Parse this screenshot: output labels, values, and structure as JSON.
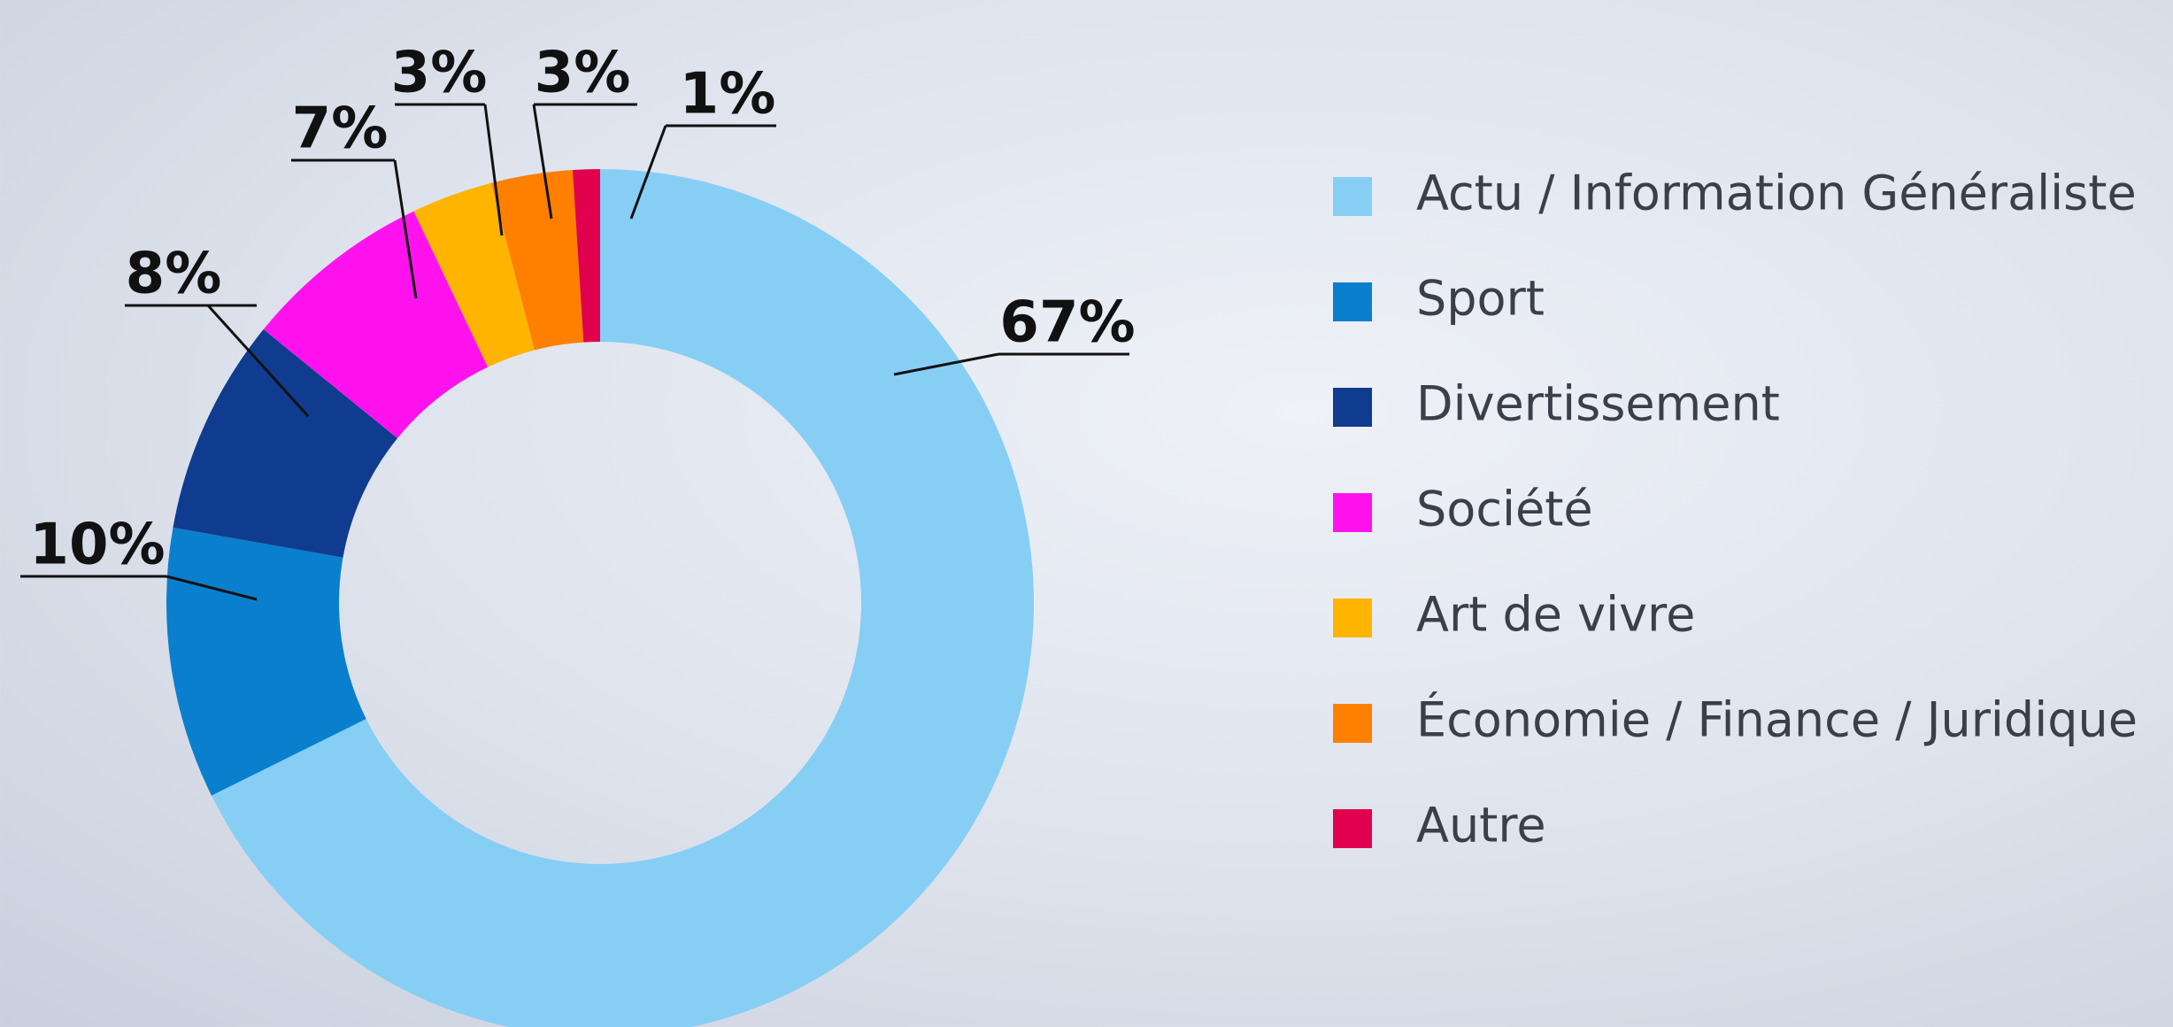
{
  "chart_data": {
    "type": "donut",
    "categories": [
      "Actu / Information Généraliste",
      "Sport",
      "Divertissement",
      "Société",
      "Art de vivre",
      "Économie / Finance / Juridique",
      "Autre"
    ],
    "values": [
      67,
      10,
      8,
      7,
      3,
      3,
      1
    ],
    "value_labels": [
      "67%",
      "10%",
      "8%",
      "7%",
      "3%",
      "3%",
      "1%"
    ],
    "colors": [
      "#87cef5",
      "#0a7fce",
      "#0f3c8f",
      "#ff12ee",
      "#ffb400",
      "#ff8000",
      "#e0004e"
    ],
    "legend": "right"
  }
}
